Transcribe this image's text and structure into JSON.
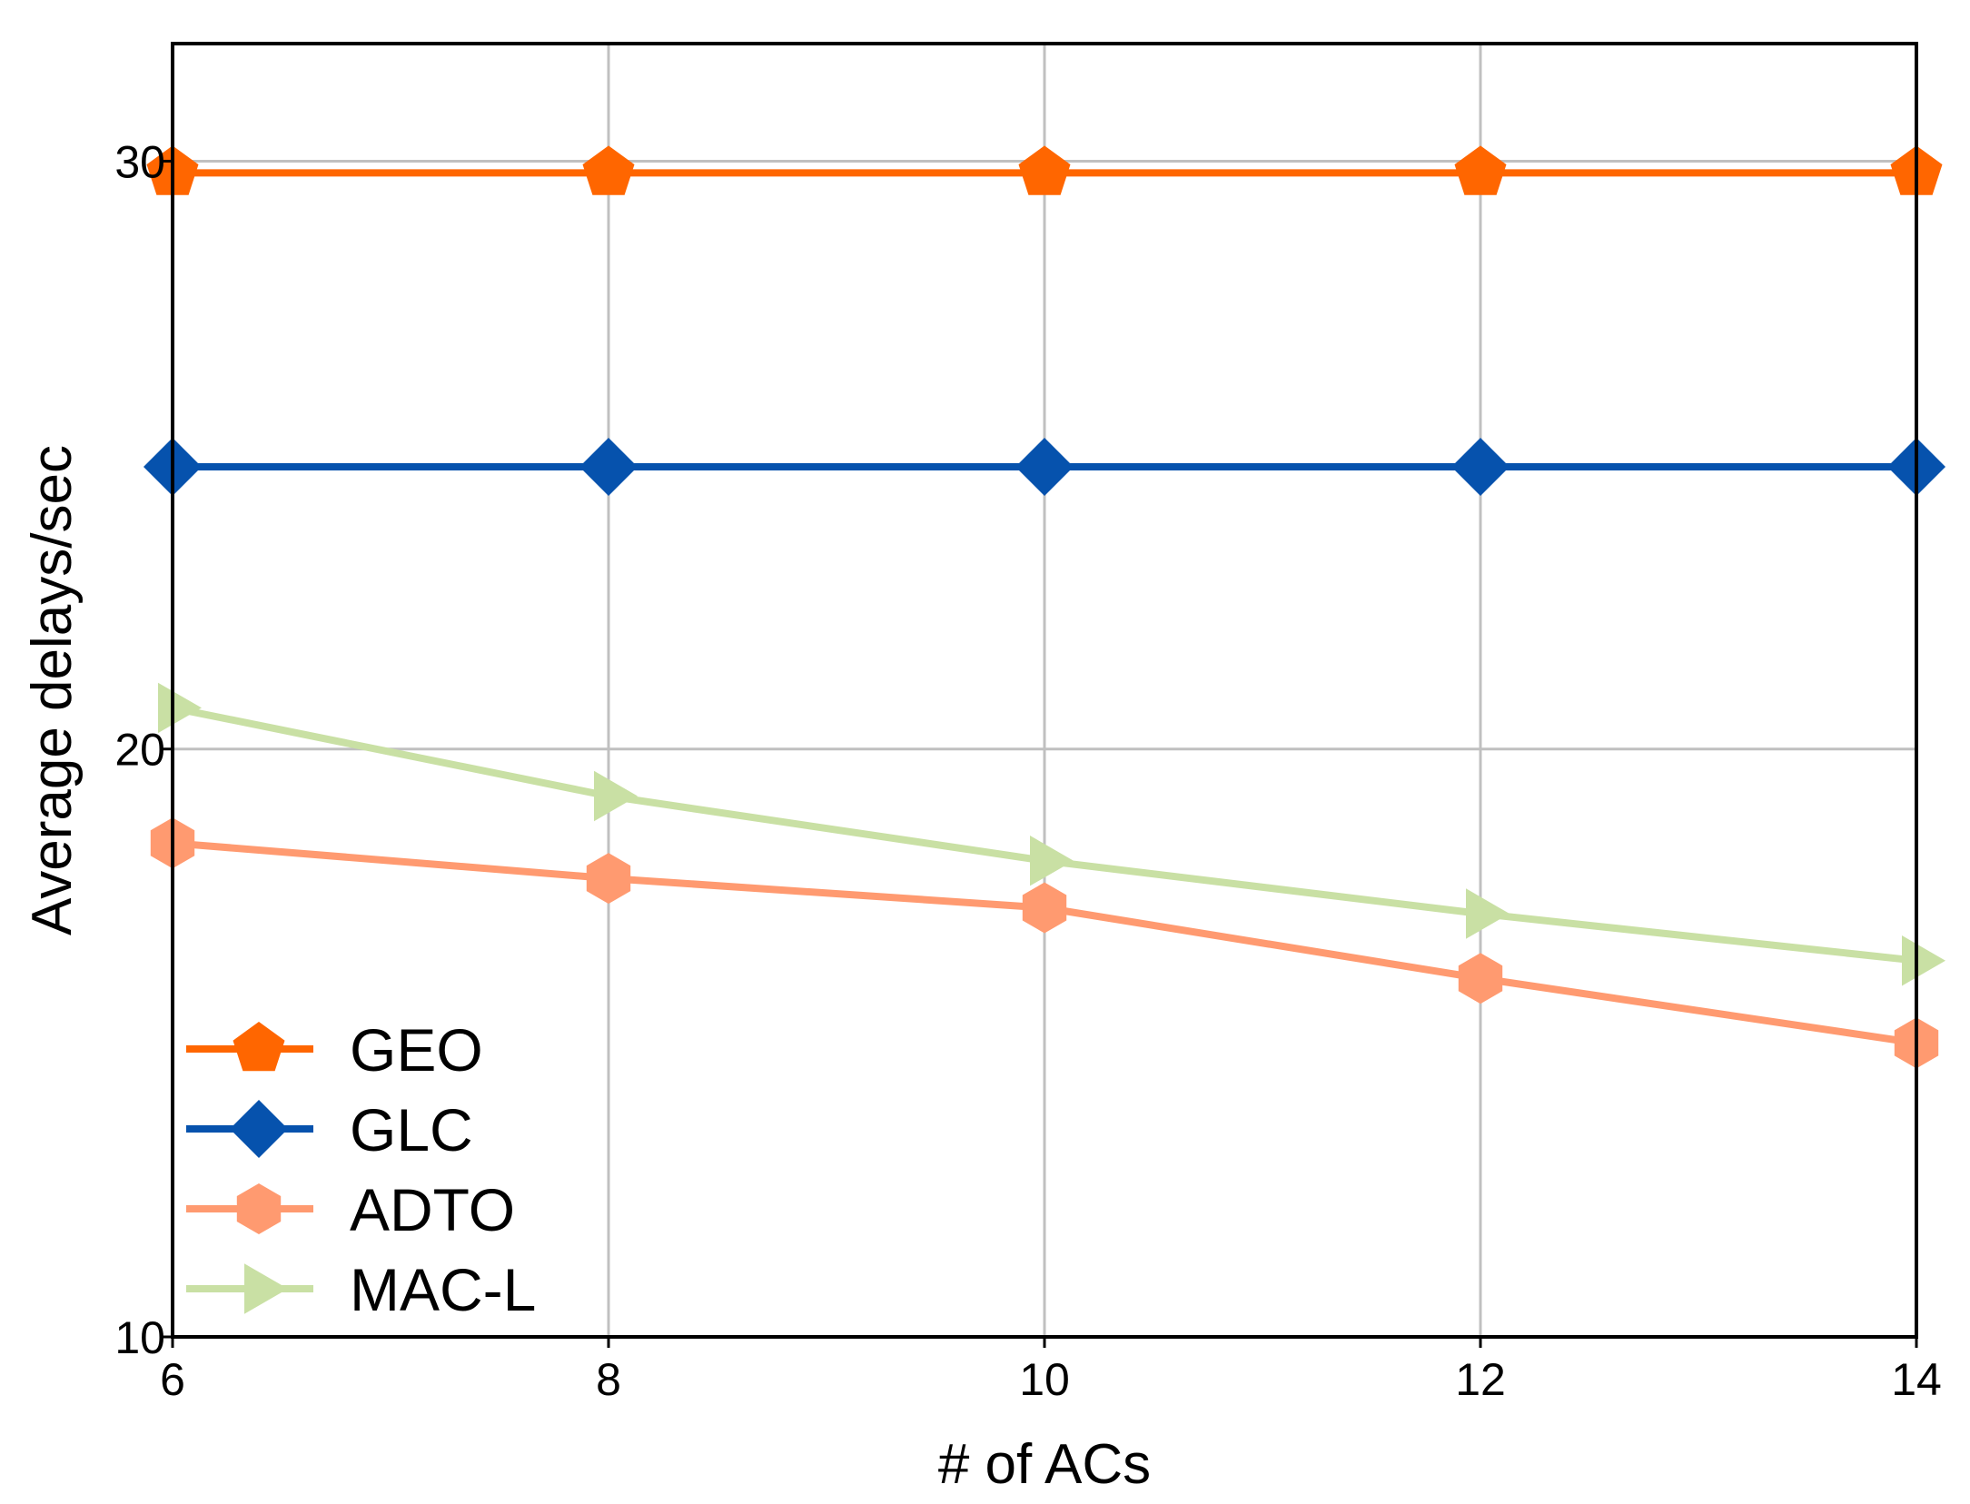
{
  "chart_data": {
    "type": "line",
    "title": "",
    "xlabel": "# of ACs",
    "ylabel": "Average delays/sec",
    "x": [
      6,
      8,
      10,
      12,
      14
    ],
    "xlim": [
      6,
      14
    ],
    "ylim": [
      10,
      32
    ],
    "xticks": [
      "6",
      "8",
      "10",
      "12",
      "14"
    ],
    "yticks": [
      "10",
      "20",
      "30"
    ],
    "ytick_values": [
      10,
      20,
      30
    ],
    "grid": true,
    "legend_position": "bottom-left",
    "series": [
      {
        "name": "GEO",
        "marker": "pentagon",
        "color": "#ff6600",
        "values": [
          29.8,
          29.8,
          29.8,
          29.8,
          29.8
        ]
      },
      {
        "name": "GLC",
        "marker": "diamond",
        "color": "#0652ad",
        "values": [
          24.8,
          24.8,
          24.8,
          24.8,
          24.8
        ]
      },
      {
        "name": "ADTO",
        "marker": "hexagon",
        "color": "#ff9a70",
        "values": [
          18.4,
          17.8,
          17.3,
          16.1,
          15.0
        ]
      },
      {
        "name": "MAC-L",
        "marker": "triangle-right",
        "color": "#c9e0a4",
        "values": [
          20.7,
          19.2,
          18.1,
          17.2,
          16.4
        ]
      }
    ]
  }
}
